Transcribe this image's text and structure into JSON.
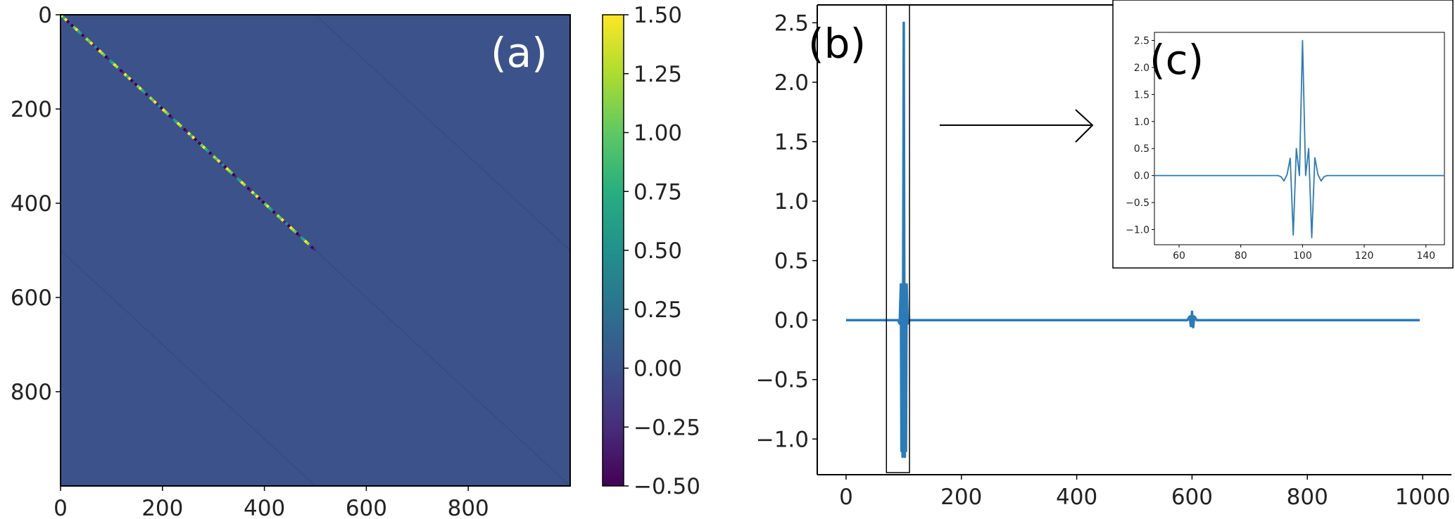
{
  "chart_data": [
    {
      "id": "a",
      "panel_label": "(a)",
      "type": "heatmap",
      "x_ticks": [
        0,
        200,
        400,
        600,
        800
      ],
      "y_ticks": [
        0,
        200,
        400,
        600,
        800
      ],
      "xlim": [
        0,
        1000
      ],
      "ylim": [
        1000,
        0
      ],
      "background_value": 0.0,
      "colorbar": {
        "ticks": [
          "1.50",
          "1.25",
          "1.00",
          "0.75",
          "0.50",
          "0.25",
          "0.00",
          "−0.25",
          "−0.50"
        ],
        "range": [
          -0.5,
          1.5
        ],
        "colormap": "viridis"
      },
      "features": [
        {
          "kind": "strong_diagonal",
          "from": [
            0,
            0
          ],
          "to": [
            500,
            500
          ],
          "value_range": [
            -0.5,
            1.5
          ]
        },
        {
          "kind": "faint_diagonal",
          "from": [
            500,
            0
          ],
          "to": [
            1000,
            500
          ]
        },
        {
          "kind": "faint_diagonal",
          "from": [
            0,
            500
          ],
          "to": [
            500,
            1000
          ]
        },
        {
          "kind": "faint_diagonal",
          "from": [
            500,
            500
          ],
          "to": [
            1000,
            1000
          ]
        }
      ]
    },
    {
      "id": "b",
      "panel_label": "(b)",
      "type": "line",
      "xlim": [
        -50,
        1050
      ],
      "ylim": [
        -1.3,
        2.65
      ],
      "x_ticks": [
        0,
        200,
        400,
        600,
        800,
        1000
      ],
      "y_ticks": [
        "2.5",
        "2.0",
        "1.5",
        "1.0",
        "0.5",
        "0.0",
        "−0.5",
        "−1.0"
      ],
      "series": [
        {
          "color": "#2b7bb9",
          "x": [
            0,
            90,
            93,
            95,
            96,
            97,
            98,
            99,
            100,
            101,
            102,
            103,
            104,
            105,
            107,
            110,
            592,
            596,
            598,
            600,
            602,
            604,
            608,
            995
          ],
          "y": [
            0,
            0,
            -0.03,
            0.3,
            -1.1,
            0.3,
            -1.15,
            0.3,
            2.5,
            0.3,
            -1.15,
            0.3,
            -1.1,
            0.3,
            -0.03,
            0,
            0,
            0.03,
            -0.05,
            0.07,
            -0.06,
            0.03,
            0,
            0
          ]
        }
      ],
      "highlight_box_x": [
        70,
        110
      ],
      "arrow_to": "c"
    },
    {
      "id": "c",
      "panel_label": "(c)",
      "type": "line",
      "xlim": [
        52,
        146
      ],
      "ylim": [
        -1.28,
        2.65
      ],
      "x_ticks": [
        60,
        80,
        100,
        120,
        140
      ],
      "y_ticks": [
        "2.5",
        "2.0",
        "1.5",
        "1.0",
        "0.5",
        "0.0",
        "−0.5",
        "−1.0"
      ],
      "series": [
        {
          "color": "#2b7bb9",
          "x": [
            52,
            92,
            93,
            94,
            95,
            96,
            97,
            98,
            99,
            100,
            101,
            102,
            103,
            104,
            105,
            106,
            107,
            108,
            146
          ],
          "y": [
            0,
            0,
            -0.02,
            -0.1,
            0.02,
            0.32,
            -1.1,
            0.5,
            0.0,
            2.5,
            0.0,
            0.5,
            -1.15,
            0.33,
            0.02,
            -0.1,
            -0.02,
            0,
            0
          ]
        }
      ]
    }
  ]
}
